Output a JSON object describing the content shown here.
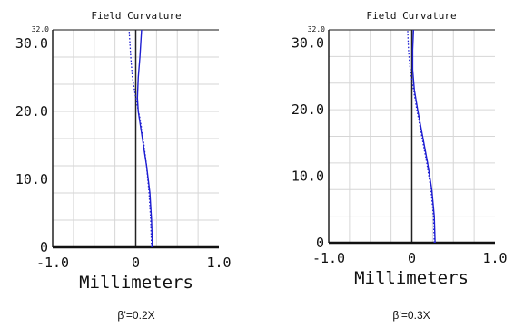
{
  "chart_data": [
    {
      "type": "line",
      "title": "Field Curvature",
      "xlabel": "Millimeters",
      "caption": "β’=0.2X",
      "xlim": [
        -1.0,
        1.0
      ],
      "ylim": [
        0,
        32.0
      ],
      "x_ticks": [
        "-1.0",
        "0",
        "1.0"
      ],
      "y_ticks": [
        "0",
        "10.0",
        "20.0",
        "30.0"
      ],
      "y_max_label": "32.0",
      "grid": true,
      "series": [
        {
          "style": "solid",
          "color": "#1e1ed2",
          "points": [
            [
              0.2,
              0
            ],
            [
              0.19,
              4
            ],
            [
              0.17,
              8
            ],
            [
              0.13,
              12
            ],
            [
              0.08,
              16
            ],
            [
              0.03,
              20
            ],
            [
              0.02,
              22
            ],
            [
              0.03,
              25
            ],
            [
              0.05,
              28
            ],
            [
              0.06,
              30
            ],
            [
              0.07,
              32
            ]
          ]
        },
        {
          "style": "dotted",
          "color": "#1e1ed2",
          "points": [
            [
              0.19,
              0
            ],
            [
              0.18,
              4
            ],
            [
              0.16,
              8
            ],
            [
              0.13,
              12
            ],
            [
              0.09,
              16
            ],
            [
              0.05,
              19
            ],
            [
              0.0,
              22
            ],
            [
              -0.04,
              25
            ],
            [
              -0.06,
              28
            ],
            [
              -0.07,
              30
            ],
            [
              -0.08,
              32
            ]
          ]
        }
      ]
    },
    {
      "type": "line",
      "title": "Field Curvature",
      "xlabel": "Millimeters",
      "caption": "β’=0.3X",
      "xlim": [
        -1.0,
        1.0
      ],
      "ylim": [
        0,
        32.0
      ],
      "x_ticks": [
        "-1.0",
        "0",
        "1.0"
      ],
      "y_ticks": [
        "0",
        "10.0",
        "20.0",
        "30.0"
      ],
      "y_max_label": "32.0",
      "grid": true,
      "series": [
        {
          "style": "solid",
          "color": "#1e1ed2",
          "points": [
            [
              0.28,
              0
            ],
            [
              0.27,
              4
            ],
            [
              0.24,
              8
            ],
            [
              0.19,
              12
            ],
            [
              0.13,
              16
            ],
            [
              0.07,
              20
            ],
            [
              0.03,
              23
            ],
            [
              0.01,
              26
            ],
            [
              0.01,
              29
            ],
            [
              0.02,
              32
            ]
          ]
        },
        {
          "style": "dotted",
          "color": "#1e1ed2",
          "points": [
            [
              0.27,
              0
            ],
            [
              0.26,
              4
            ],
            [
              0.23,
              8
            ],
            [
              0.18,
              12
            ],
            [
              0.12,
              16
            ],
            [
              0.06,
              20
            ],
            [
              0.02,
              23
            ],
            [
              -0.02,
              26
            ],
            [
              -0.04,
              29
            ],
            [
              -0.05,
              32
            ]
          ]
        }
      ]
    }
  ]
}
